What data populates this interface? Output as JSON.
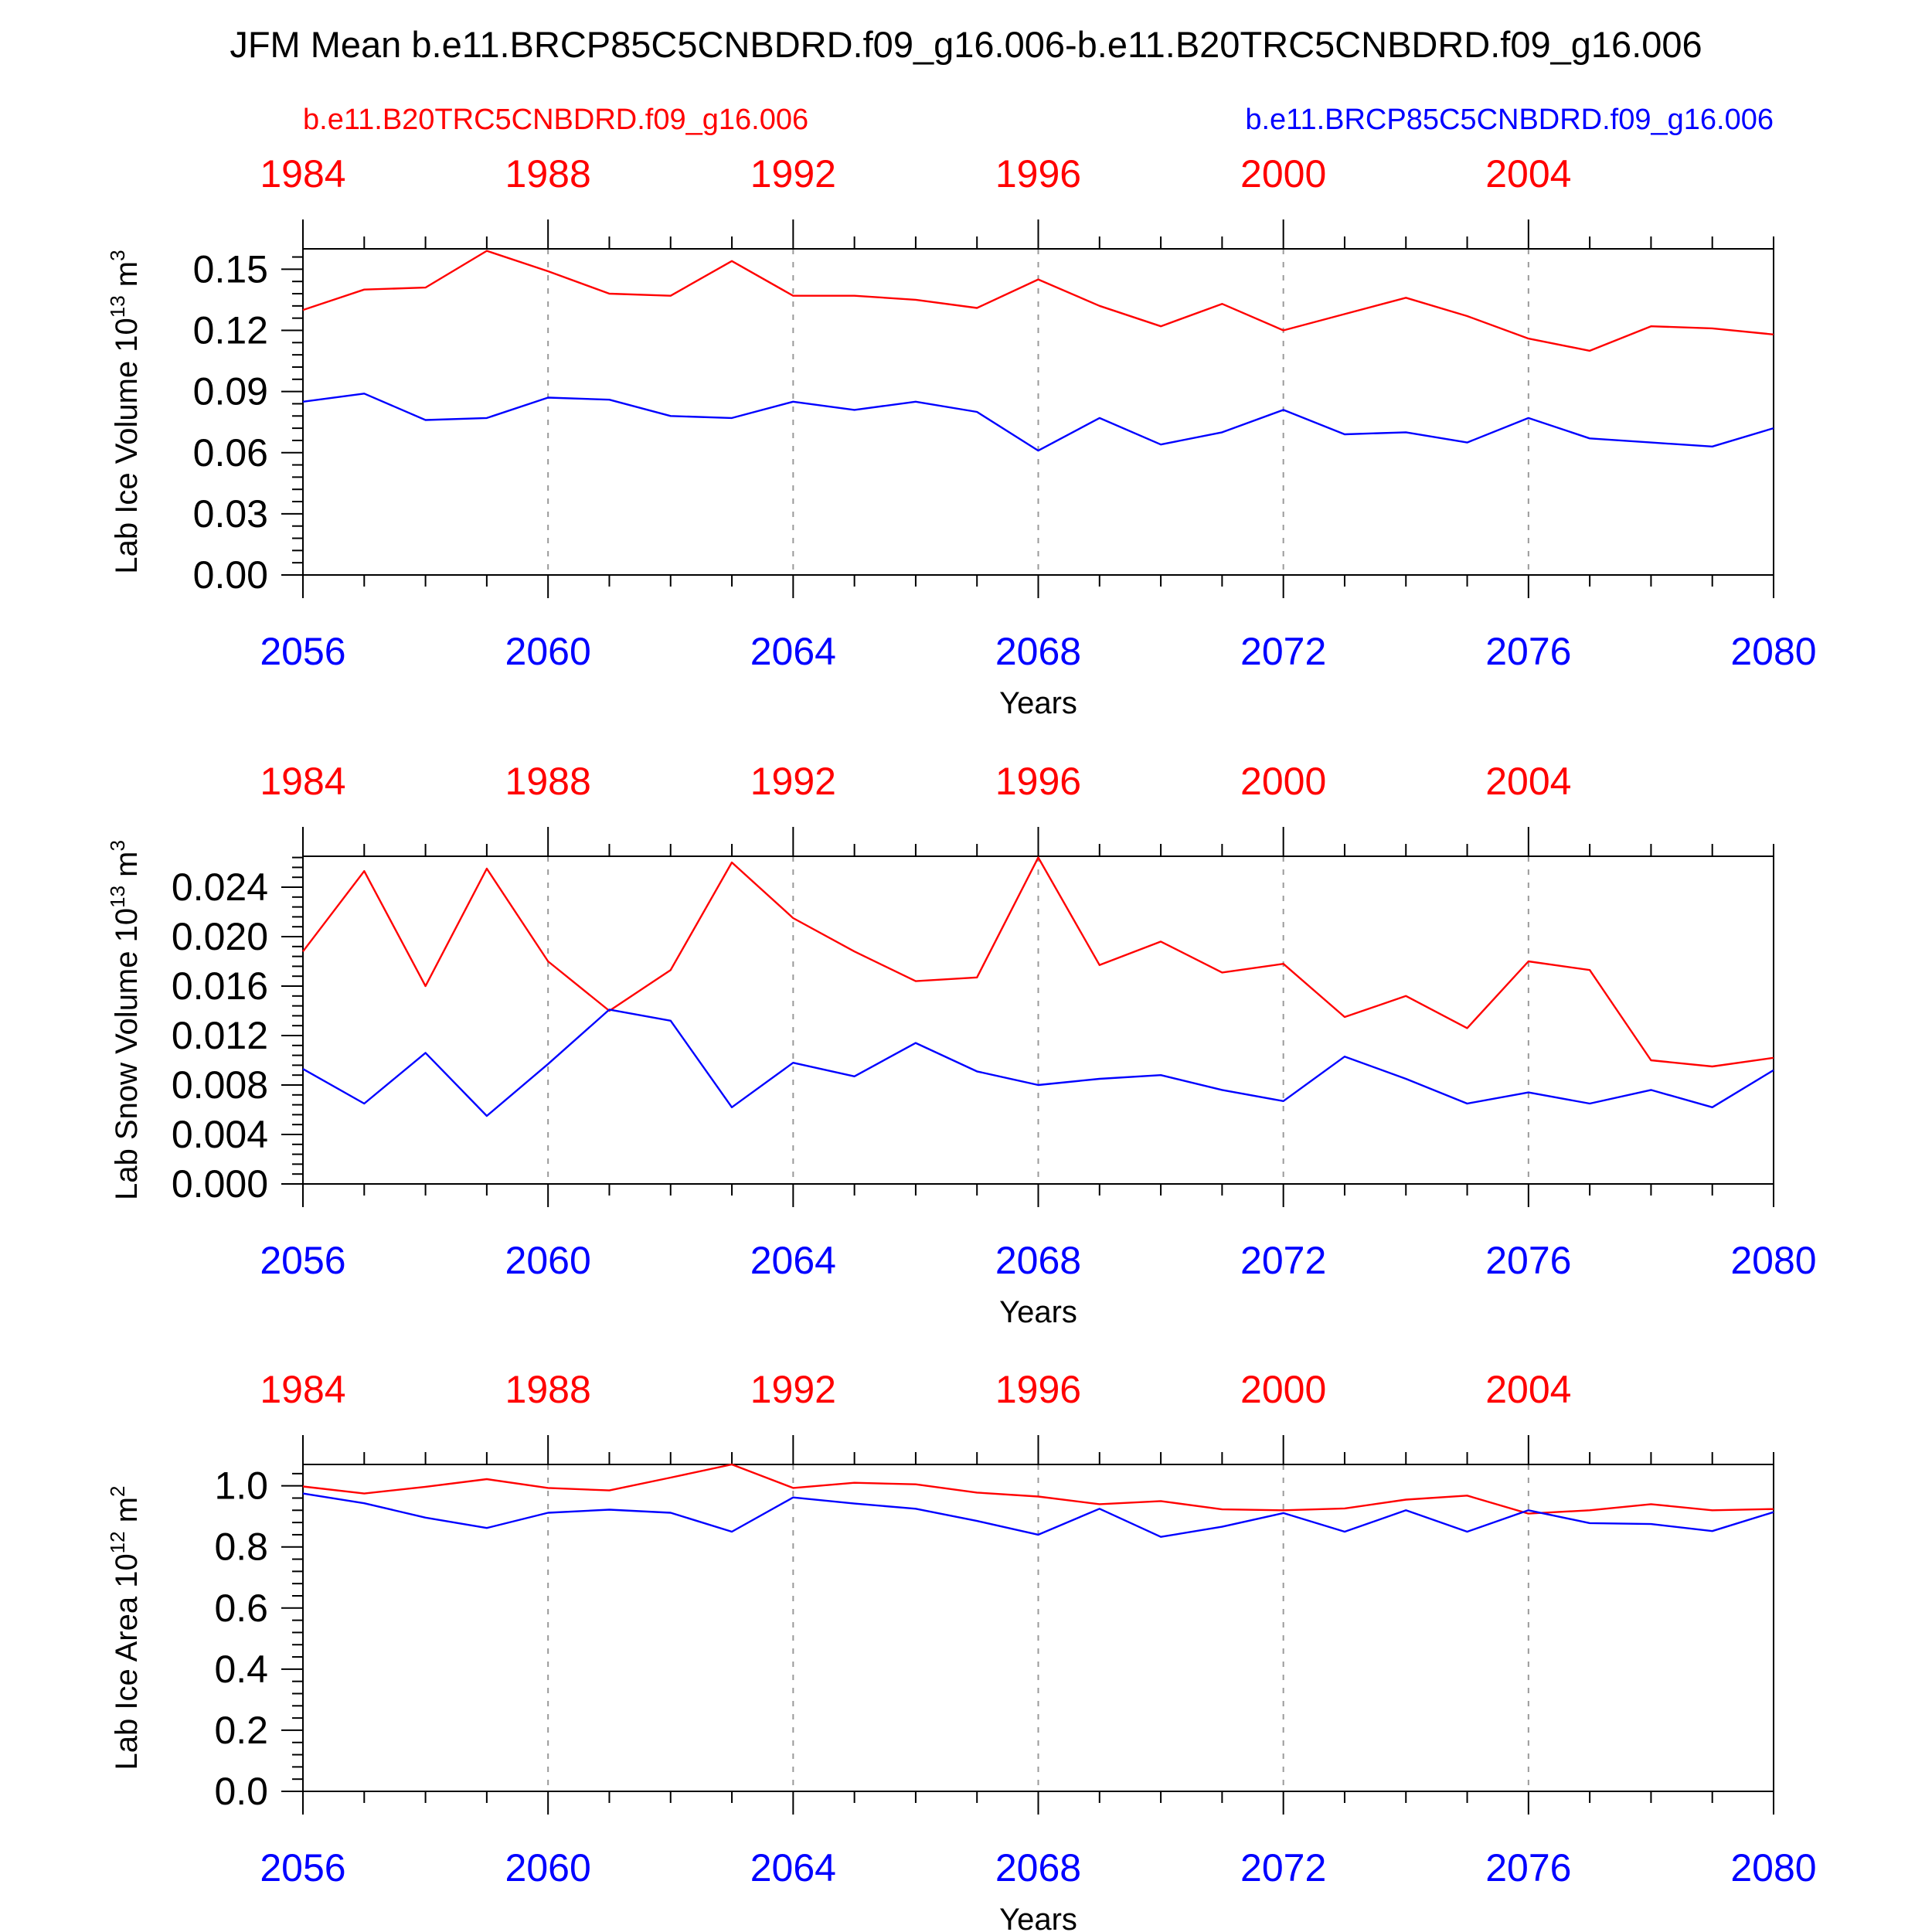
{
  "figure": {
    "title": "JFM Mean b.e11.BRCP85C5CNBDRD.f09_g16.006-b.e11.B20TRC5CNBDRD.f09_g16.006",
    "left_label": "b.e11.B20TRC5CNBDRD.f09_g16.006",
    "right_label": "b.e11.BRCP85C5CNBDRD.f09_g16.006",
    "colors": {
      "red": "#ff0000",
      "blue": "#0000ff",
      "grid": "#9a9a9a"
    }
  },
  "chart_data": [
    {
      "type": "line",
      "ylabel": "Lab Ice Volume 10^13 m^3",
      "ylabel_base": "Lab Ice Volume 10",
      "ylabel_exp1": "13",
      "ylabel_unit": "m",
      "ylabel_exp2": "3",
      "xlabel": "Years",
      "x": [
        2056,
        2057,
        2058,
        2059,
        2060,
        2061,
        2062,
        2063,
        2064,
        2065,
        2066,
        2067,
        2068,
        2069,
        2070,
        2071,
        2072,
        2073,
        2074,
        2075,
        2076,
        2077,
        2078,
        2079,
        2080
      ],
      "xlim": [
        2056,
        2080
      ],
      "ylim": [
        0,
        0.16
      ],
      "yticks": [
        "0.00",
        "0.03",
        "0.06",
        "0.09",
        "0.12",
        "0.15"
      ],
      "ytick_values": [
        0,
        0.03,
        0.06,
        0.09,
        0.12,
        0.15
      ],
      "xticks_bottom": [
        "2056",
        "2060",
        "2064",
        "2068",
        "2072",
        "2076",
        "2080"
      ],
      "xtick_values_bottom": [
        2056,
        2060,
        2064,
        2068,
        2072,
        2076,
        2080
      ],
      "xticks_top": [
        "1984",
        "1988",
        "1992",
        "1996",
        "2000",
        "2004"
      ],
      "xtick_values_top": [
        1984,
        1988,
        1992,
        1996,
        2000,
        2004
      ],
      "top_x_offset": 72,
      "series": [
        {
          "name": "b.e11.B20TRC5CNBDRD.f09_g16.006",
          "color": "#ff0000",
          "values": [
            0.13,
            0.14,
            0.141,
            0.159,
            0.149,
            0.138,
            0.137,
            0.154,
            0.137,
            0.137,
            0.135,
            0.131,
            0.145,
            0.132,
            0.122,
            0.133,
            0.12,
            0.128,
            0.136,
            0.127,
            0.116,
            0.11,
            0.122,
            0.121,
            0.118
          ]
        },
        {
          "name": "b.e11.BRCP85C5CNBDRD.f09_g16.006",
          "color": "#0000ff",
          "values": [
            0.085,
            0.089,
            0.076,
            0.077,
            0.087,
            0.086,
            0.078,
            0.077,
            0.085,
            0.081,
            0.085,
            0.08,
            0.061,
            0.077,
            0.064,
            0.07,
            0.081,
            0.069,
            0.07,
            0.065,
            0.077,
            0.067,
            0.065,
            0.063,
            0.072
          ]
        }
      ]
    },
    {
      "type": "line",
      "ylabel": "Lab Snow Volume 10^13 m^3",
      "ylabel_base": "Lab Snow Volume 10",
      "ylabel_exp1": "13",
      "ylabel_unit": "m",
      "ylabel_exp2": "3",
      "xlabel": "Years",
      "x": [
        2056,
        2057,
        2058,
        2059,
        2060,
        2061,
        2062,
        2063,
        2064,
        2065,
        2066,
        2067,
        2068,
        2069,
        2070,
        2071,
        2072,
        2073,
        2074,
        2075,
        2076,
        2077,
        2078,
        2079,
        2080
      ],
      "xlim": [
        2056,
        2080
      ],
      "ylim": [
        0,
        0.0265
      ],
      "yticks": [
        "0.000",
        "0.004",
        "0.008",
        "0.012",
        "0.016",
        "0.020",
        "0.024"
      ],
      "ytick_values": [
        0,
        0.004,
        0.008,
        0.012,
        0.016,
        0.02,
        0.024
      ],
      "xticks_bottom": [
        "2056",
        "2060",
        "2064",
        "2068",
        "2072",
        "2076",
        "2080"
      ],
      "xtick_values_bottom": [
        2056,
        2060,
        2064,
        2068,
        2072,
        2076,
        2080
      ],
      "xticks_top": [
        "1984",
        "1988",
        "1992",
        "1996",
        "2000",
        "2004"
      ],
      "xtick_values_top": [
        1984,
        1988,
        1992,
        1996,
        2000,
        2004
      ],
      "top_x_offset": 72,
      "series": [
        {
          "name": "b.e11.B20TRC5CNBDRD.f09_g16.006",
          "color": "#ff0000",
          "values": [
            0.0188,
            0.0253,
            0.016,
            0.0255,
            0.018,
            0.014,
            0.0173,
            0.026,
            0.0215,
            0.0188,
            0.0164,
            0.0167,
            0.0264,
            0.0177,
            0.0196,
            0.0171,
            0.0178,
            0.0135,
            0.0152,
            0.0126,
            0.018,
            0.0173,
            0.01,
            0.0095,
            0.0102
          ]
        },
        {
          "name": "b.e11.BRCP85C5CNBDRD.f09_g16.006",
          "color": "#0000ff",
          "values": [
            0.0093,
            0.0065,
            0.0106,
            0.0055,
            0.0097,
            0.0141,
            0.0132,
            0.0062,
            0.0098,
            0.0087,
            0.0114,
            0.0091,
            0.008,
            0.0085,
            0.0088,
            0.0076,
            0.0067,
            0.0103,
            0.0085,
            0.0065,
            0.0074,
            0.0065,
            0.0076,
            0.0062,
            0.0092
          ]
        }
      ]
    },
    {
      "type": "line",
      "ylabel": "Lab Ice Area 10^12 m^2",
      "ylabel_base": "Lab Ice Area 10",
      "ylabel_exp1": "12",
      "ylabel_unit": "m",
      "ylabel_exp2": "2",
      "xlabel": "Years",
      "x": [
        2056,
        2057,
        2058,
        2059,
        2060,
        2061,
        2062,
        2063,
        2064,
        2065,
        2066,
        2067,
        2068,
        2069,
        2070,
        2071,
        2072,
        2073,
        2074,
        2075,
        2076,
        2077,
        2078,
        2079,
        2080
      ],
      "xlim": [
        2056,
        2080
      ],
      "ylim": [
        0,
        1.07
      ],
      "yticks": [
        "0.0",
        "0.2",
        "0.4",
        "0.6",
        "0.8",
        "1.0"
      ],
      "ytick_values": [
        0,
        0.2,
        0.4,
        0.6,
        0.8,
        1.0
      ],
      "xticks_bottom": [
        "2056",
        "2060",
        "2064",
        "2068",
        "2072",
        "2076",
        "2080"
      ],
      "xtick_values_bottom": [
        2056,
        2060,
        2064,
        2068,
        2072,
        2076,
        2080
      ],
      "xticks_top": [
        "1984",
        "1988",
        "1992",
        "1996",
        "2000",
        "2004"
      ],
      "xtick_values_top": [
        1984,
        1988,
        1992,
        1996,
        2000,
        2004
      ],
      "top_x_offset": 72,
      "series": [
        {
          "name": "b.e11.B20TRC5CNBDRD.f09_g16.006",
          "color": "#ff0000",
          "values": [
            0.998,
            0.975,
            0.997,
            1.022,
            0.993,
            0.985,
            1.027,
            1.07,
            0.993,
            1.01,
            1.005,
            0.978,
            0.965,
            0.94,
            0.95,
            0.923,
            0.92,
            0.926,
            0.955,
            0.968,
            0.909,
            0.92,
            0.94,
            0.92,
            0.924
          ]
        },
        {
          "name": "b.e11.BRCP85C5CNBDRD.f09_g16.006",
          "color": "#0000ff",
          "values": [
            0.975,
            0.943,
            0.896,
            0.862,
            0.912,
            0.922,
            0.912,
            0.85,
            0.962,
            0.942,
            0.925,
            0.885,
            0.84,
            0.925,
            0.833,
            0.866,
            0.911,
            0.85,
            0.92,
            0.85,
            0.92,
            0.878,
            0.875,
            0.852,
            0.914
          ]
        }
      ]
    }
  ]
}
